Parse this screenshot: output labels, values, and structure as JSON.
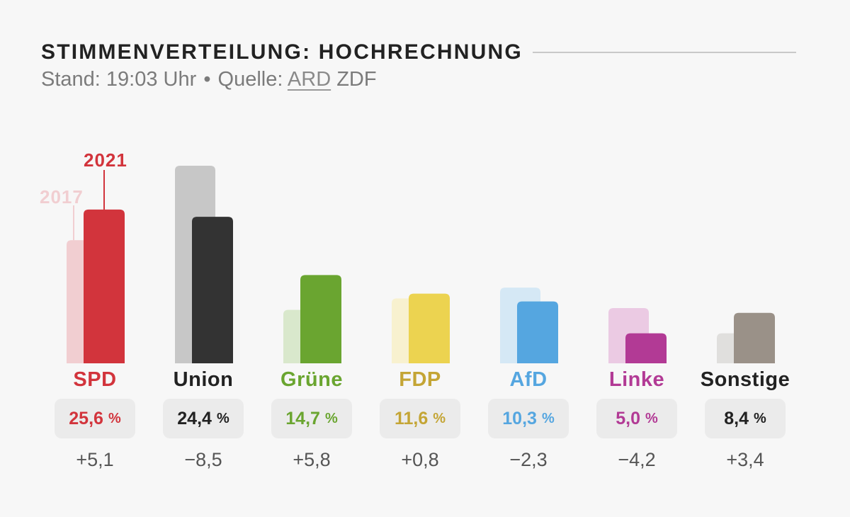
{
  "header": {
    "title": "STIMMENVERTEILUNG: HOCHRECHNUNG",
    "stand_label": "Stand: 19:03 Uhr",
    "separator": "•",
    "source_label": "Quelle:",
    "sources": [
      "ARD",
      "ZDF"
    ],
    "active_source": "ARD"
  },
  "chart_data": {
    "type": "bar",
    "title": "STIMMENVERTEILUNG: HOCHRECHNUNG",
    "unit": "%",
    "legend": [
      {
        "name": "2017",
        "position": "top-left"
      },
      {
        "name": "2021",
        "position": "top-left"
      }
    ],
    "categories": [
      "SPD",
      "Union",
      "Grüne",
      "FDP",
      "AfD",
      "Linke",
      "Sonstige"
    ],
    "series": [
      {
        "name": "2017",
        "values": [
          20.5,
          32.9,
          8.9,
          10.8,
          12.6,
          9.2,
          5.0
        ]
      },
      {
        "name": "2021",
        "values": [
          25.6,
          24.4,
          14.7,
          11.6,
          10.3,
          5.0,
          8.4
        ]
      }
    ],
    "value_labels": [
      "25,6",
      "24,4",
      "14,7",
      "11,6",
      "10,3",
      "5,0",
      "8,4"
    ],
    "diff_labels": [
      "+5,1",
      "−8,5",
      "+5,8",
      "+0,8",
      "−2,3",
      "−4,2",
      "+3,4"
    ],
    "colors_2021": [
      "#d2343c",
      "#333333",
      "#6aa530",
      "#ecd350",
      "#55a6e0",
      "#b23a95",
      "#9a9188"
    ],
    "colors_2017": [
      "#f1ced1",
      "#c7c7c7",
      "#d9e8cc",
      "#f8f1cf",
      "#d5e8f5",
      "#ebcae3",
      "#e0dfdd"
    ],
    "label_colors": [
      "#d2343c",
      "#222222",
      "#6aa530",
      "#c4a535",
      "#55a6e0",
      "#b23a95",
      "#222222"
    ]
  }
}
